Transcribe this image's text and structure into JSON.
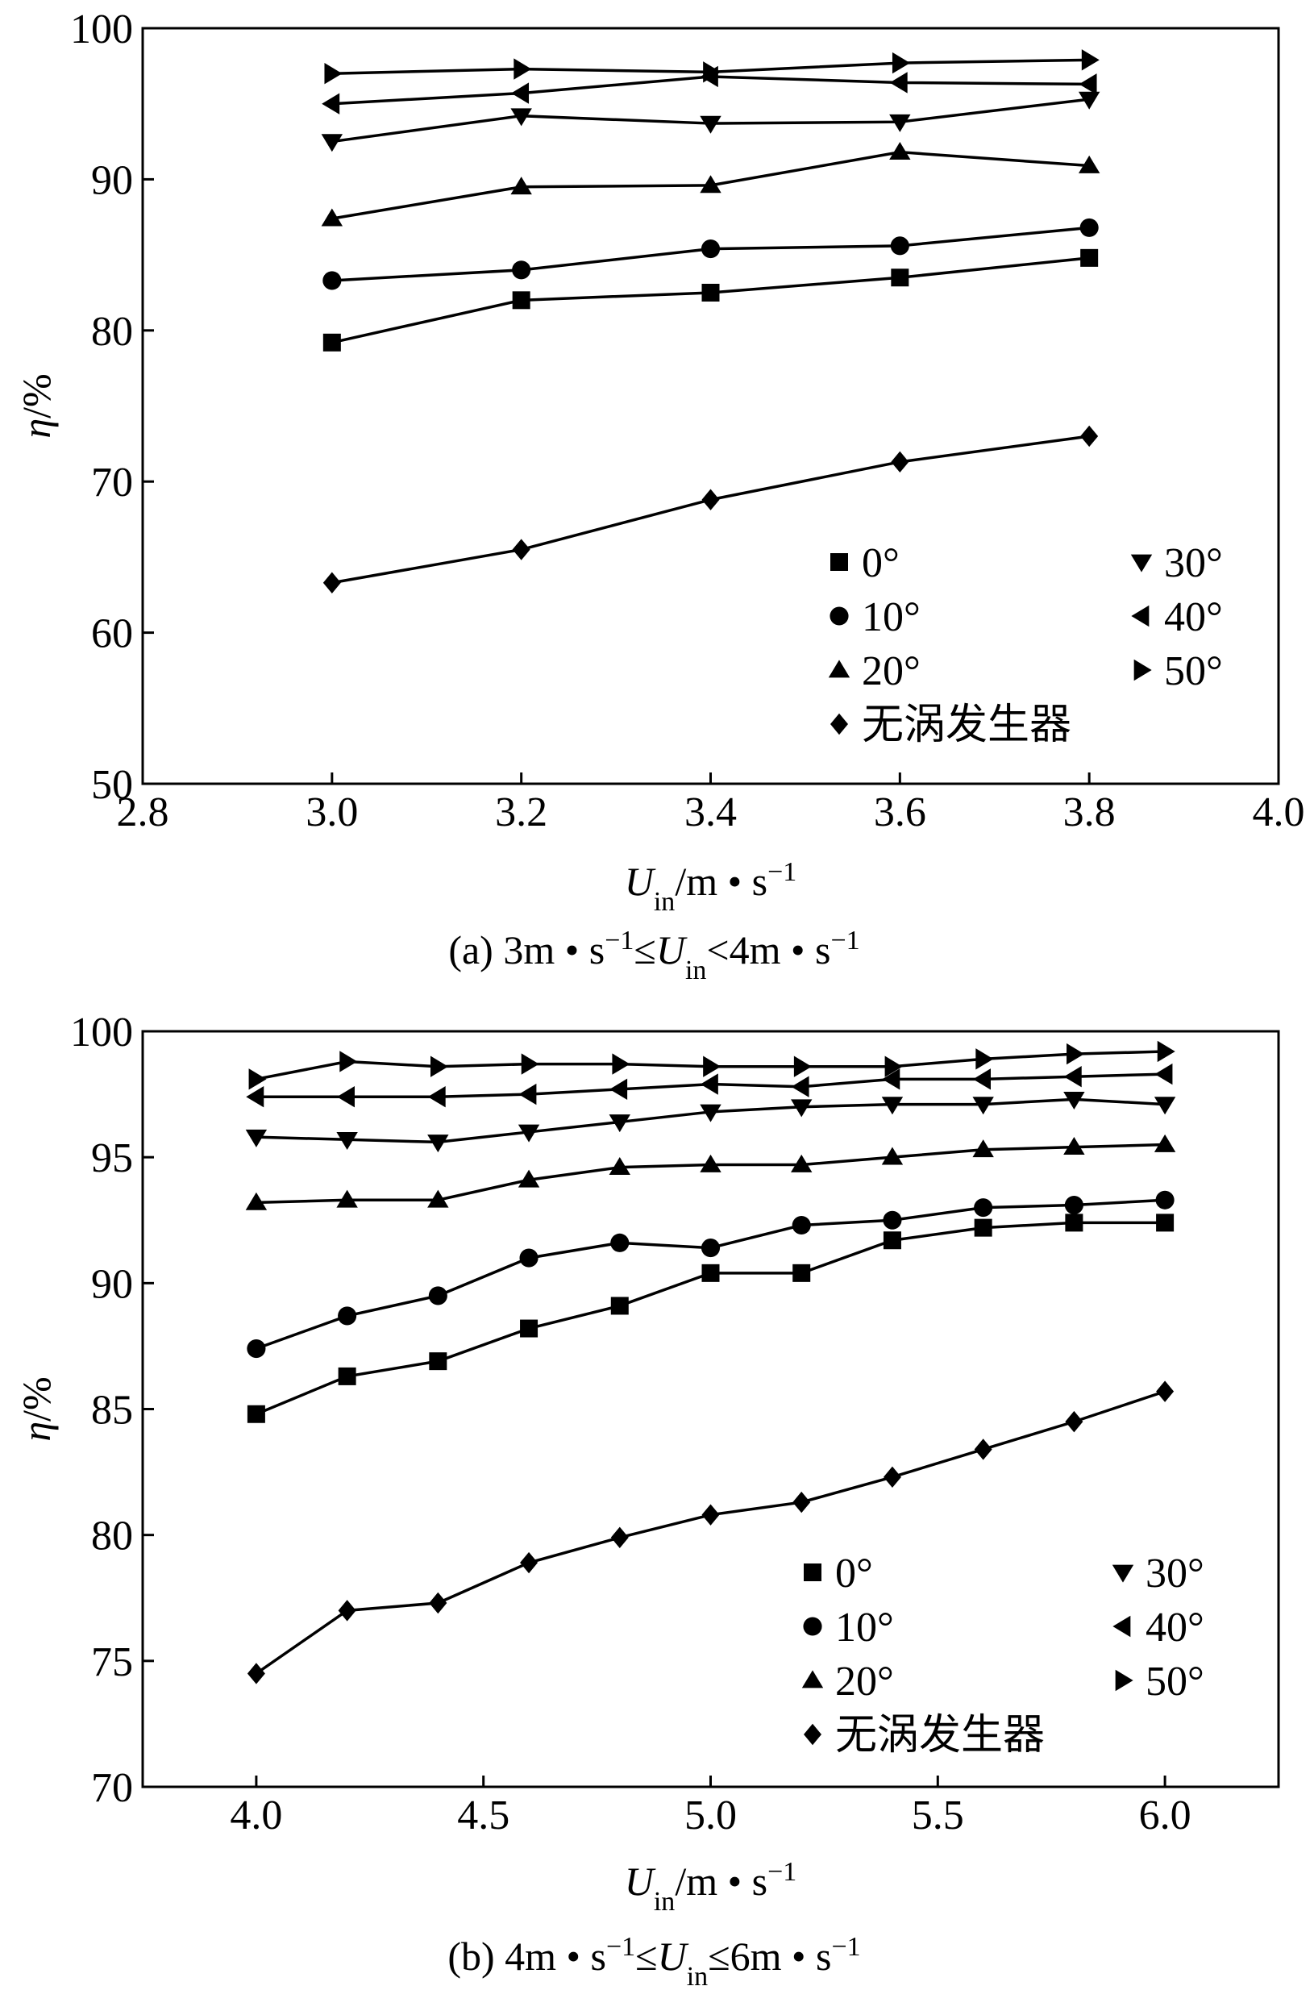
{
  "chart_data": [
    {
      "type": "line",
      "panel": "a",
      "caption": {
        "prefix": "(a) 3m • s",
        "sup1": "−1",
        "mid": "≤",
        "var": "U",
        "sub": "in",
        "mid2": "<4m • s",
        "sup2": "−1"
      },
      "xlabel": {
        "var": "U",
        "sub": "in",
        "rest": "/m • s",
        "sup": "−1"
      },
      "ylabel": {
        "var": "η",
        "rest": "/%"
      },
      "xlim": [
        2.8,
        4.0
      ],
      "ylim": [
        50,
        100
      ],
      "xticks": [
        "2.8",
        "3.0",
        "3.2",
        "3.4",
        "3.6",
        "3.8",
        "4.0"
      ],
      "yticks": [
        "50",
        "60",
        "70",
        "80",
        "90",
        "100"
      ],
      "x": [
        3.0,
        3.2,
        3.4,
        3.6,
        3.8
      ],
      "series": [
        {
          "name": "0°",
          "marker": "square",
          "values": [
            79.2,
            82.0,
            82.5,
            83.5,
            84.8
          ]
        },
        {
          "name": "10°",
          "marker": "circle",
          "values": [
            83.3,
            84.0,
            85.4,
            85.6,
            86.8
          ]
        },
        {
          "name": "20°",
          "marker": "triangle-up",
          "values": [
            87.4,
            89.5,
            89.6,
            91.8,
            90.9
          ]
        },
        {
          "name": "30°",
          "marker": "triangle-down",
          "values": [
            92.5,
            94.2,
            93.7,
            93.8,
            95.3
          ]
        },
        {
          "name": "40°",
          "marker": "triangle-left",
          "values": [
            95.0,
            95.7,
            96.8,
            96.4,
            96.3
          ]
        },
        {
          "name": "50°",
          "marker": "triangle-right",
          "values": [
            97.0,
            97.3,
            97.1,
            97.7,
            97.9
          ]
        },
        {
          "name": "无涡发生器",
          "marker": "diamond",
          "values": [
            63.3,
            65.5,
            68.8,
            71.3,
            73.0
          ]
        }
      ],
      "legend": "bottom-right"
    },
    {
      "type": "line",
      "panel": "b",
      "caption": {
        "prefix": "(b) 4m • s",
        "sup1": "−1",
        "mid": "≤",
        "var": "U",
        "sub": "in",
        "mid2": "≤6m • s",
        "sup2": "−1"
      },
      "xlabel": {
        "var": "U",
        "sub": "in",
        "rest": "/m • s",
        "sup": "−1"
      },
      "ylabel": {
        "var": "η",
        "rest": "/%"
      },
      "xlim": [
        3.75,
        6.25
      ],
      "ylim": [
        70,
        100
      ],
      "xticks": [
        "4.0",
        "4.5",
        "5.0",
        "5.5",
        "6.0"
      ],
      "yticks": [
        "70",
        "75",
        "80",
        "85",
        "90",
        "95",
        "100"
      ],
      "x": [
        4.0,
        4.2,
        4.4,
        4.6,
        4.8,
        5.0,
        5.2,
        5.4,
        5.6,
        5.8,
        6.0
      ],
      "series": [
        {
          "name": "0°",
          "marker": "square",
          "values": [
            84.8,
            86.3,
            86.9,
            88.2,
            89.1,
            90.4,
            90.4,
            91.7,
            92.2,
            92.4,
            92.4
          ]
        },
        {
          "name": "10°",
          "marker": "circle",
          "values": [
            87.4,
            88.7,
            89.5,
            91.0,
            91.6,
            91.4,
            92.3,
            92.5,
            93.0,
            93.1,
            93.3
          ]
        },
        {
          "name": "20°",
          "marker": "triangle-up",
          "values": [
            93.2,
            93.3,
            93.3,
            94.1,
            94.6,
            94.7,
            94.7,
            95.0,
            95.3,
            95.4,
            95.5
          ]
        },
        {
          "name": "30°",
          "marker": "triangle-down",
          "values": [
            95.8,
            95.7,
            95.6,
            96.0,
            96.4,
            96.8,
            97.0,
            97.1,
            97.1,
            97.3,
            97.1
          ]
        },
        {
          "name": "40°",
          "marker": "triangle-left",
          "values": [
            97.4,
            97.4,
            97.4,
            97.5,
            97.7,
            97.9,
            97.8,
            98.1,
            98.1,
            98.2,
            98.3
          ]
        },
        {
          "name": "50°",
          "marker": "triangle-right",
          "values": [
            98.1,
            98.8,
            98.6,
            98.7,
            98.7,
            98.6,
            98.6,
            98.6,
            98.9,
            99.1,
            99.2
          ]
        },
        {
          "name": "无涡发生器",
          "marker": "diamond",
          "values": [
            74.5,
            77.0,
            77.3,
            78.9,
            79.9,
            80.8,
            81.3,
            82.3,
            83.4,
            84.5,
            85.7
          ]
        }
      ],
      "legend": "bottom-right"
    }
  ]
}
